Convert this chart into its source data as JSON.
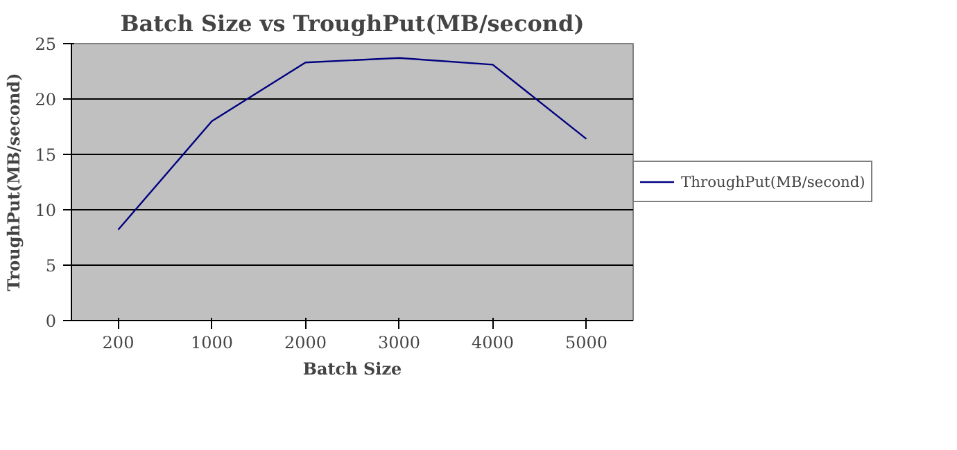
{
  "chart_data": {
    "type": "line",
    "title": "Batch Size vs TroughPut(MB/second)",
    "xlabel": "Batch Size",
    "ylabel": "TroughPut(MB/second)",
    "categories": [
      "200",
      "1000",
      "2000",
      "3000",
      "4000",
      "5000"
    ],
    "series": [
      {
        "name": "ThroughPut(MB/second)",
        "color": "#000080",
        "values": [
          8.2,
          18.0,
          23.3,
          23.7,
          23.1,
          16.4
        ]
      }
    ],
    "ylim": [
      0,
      25
    ],
    "yticks": [
      0,
      5,
      10,
      15,
      20,
      25
    ],
    "grid": "y",
    "legend": "right",
    "marker": "none",
    "line_style": "solid"
  }
}
